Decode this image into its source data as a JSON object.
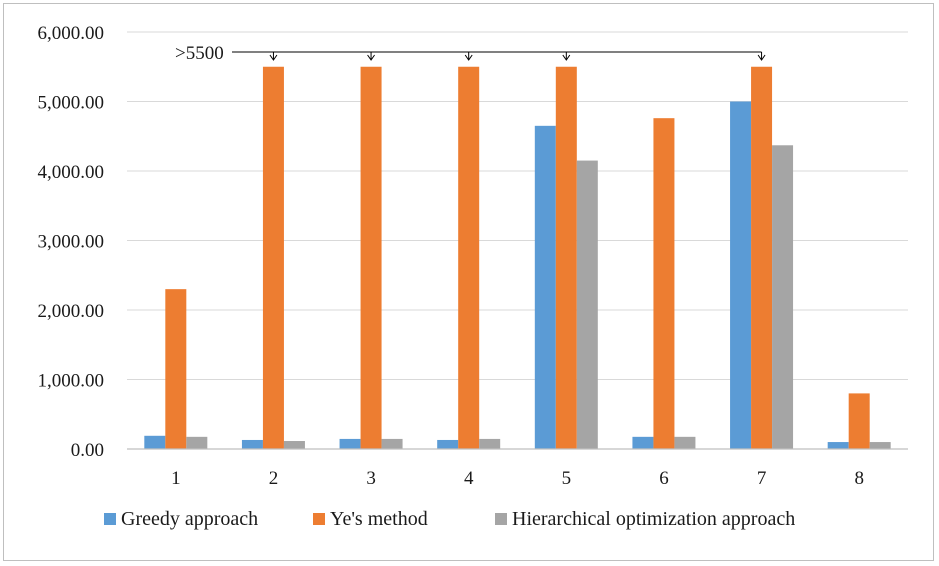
{
  "chart_data": {
    "type": "bar",
    "categories": [
      "1",
      "2",
      "3",
      "4",
      "5",
      "6",
      "7",
      "8"
    ],
    "series": [
      {
        "name": "Greedy approach",
        "color": "#5b9bd5",
        "values": [
          190,
          130,
          145,
          130,
          4650,
          175,
          5000,
          100
        ]
      },
      {
        "name": "Ye's method",
        "color": "#ed7d31",
        "values": [
          2300,
          5500,
          5500,
          5500,
          5500,
          4760,
          5500,
          800
        ]
      },
      {
        "name": "Hierarchical optimization approach",
        "color": "#a5a5a5",
        "values": [
          175,
          115,
          145,
          145,
          4150,
          175,
          4370,
          100
        ]
      }
    ],
    "ylim": [
      0,
      6000
    ],
    "yticks": [
      0,
      1000,
      2000,
      3000,
      4000,
      5000,
      6000
    ],
    "ytick_labels": [
      "0.00",
      "1,000.00",
      "2,000.00",
      "3,000.00",
      "4,000.00",
      "5,000.00",
      "6,000.00"
    ],
    "grid": true,
    "legend_position": "bottom",
    "annotation": {
      "text": ">5500",
      "target_series": "Ye's method",
      "target_categories": [
        "2",
        "3",
        "4",
        "5",
        "7"
      ]
    }
  }
}
